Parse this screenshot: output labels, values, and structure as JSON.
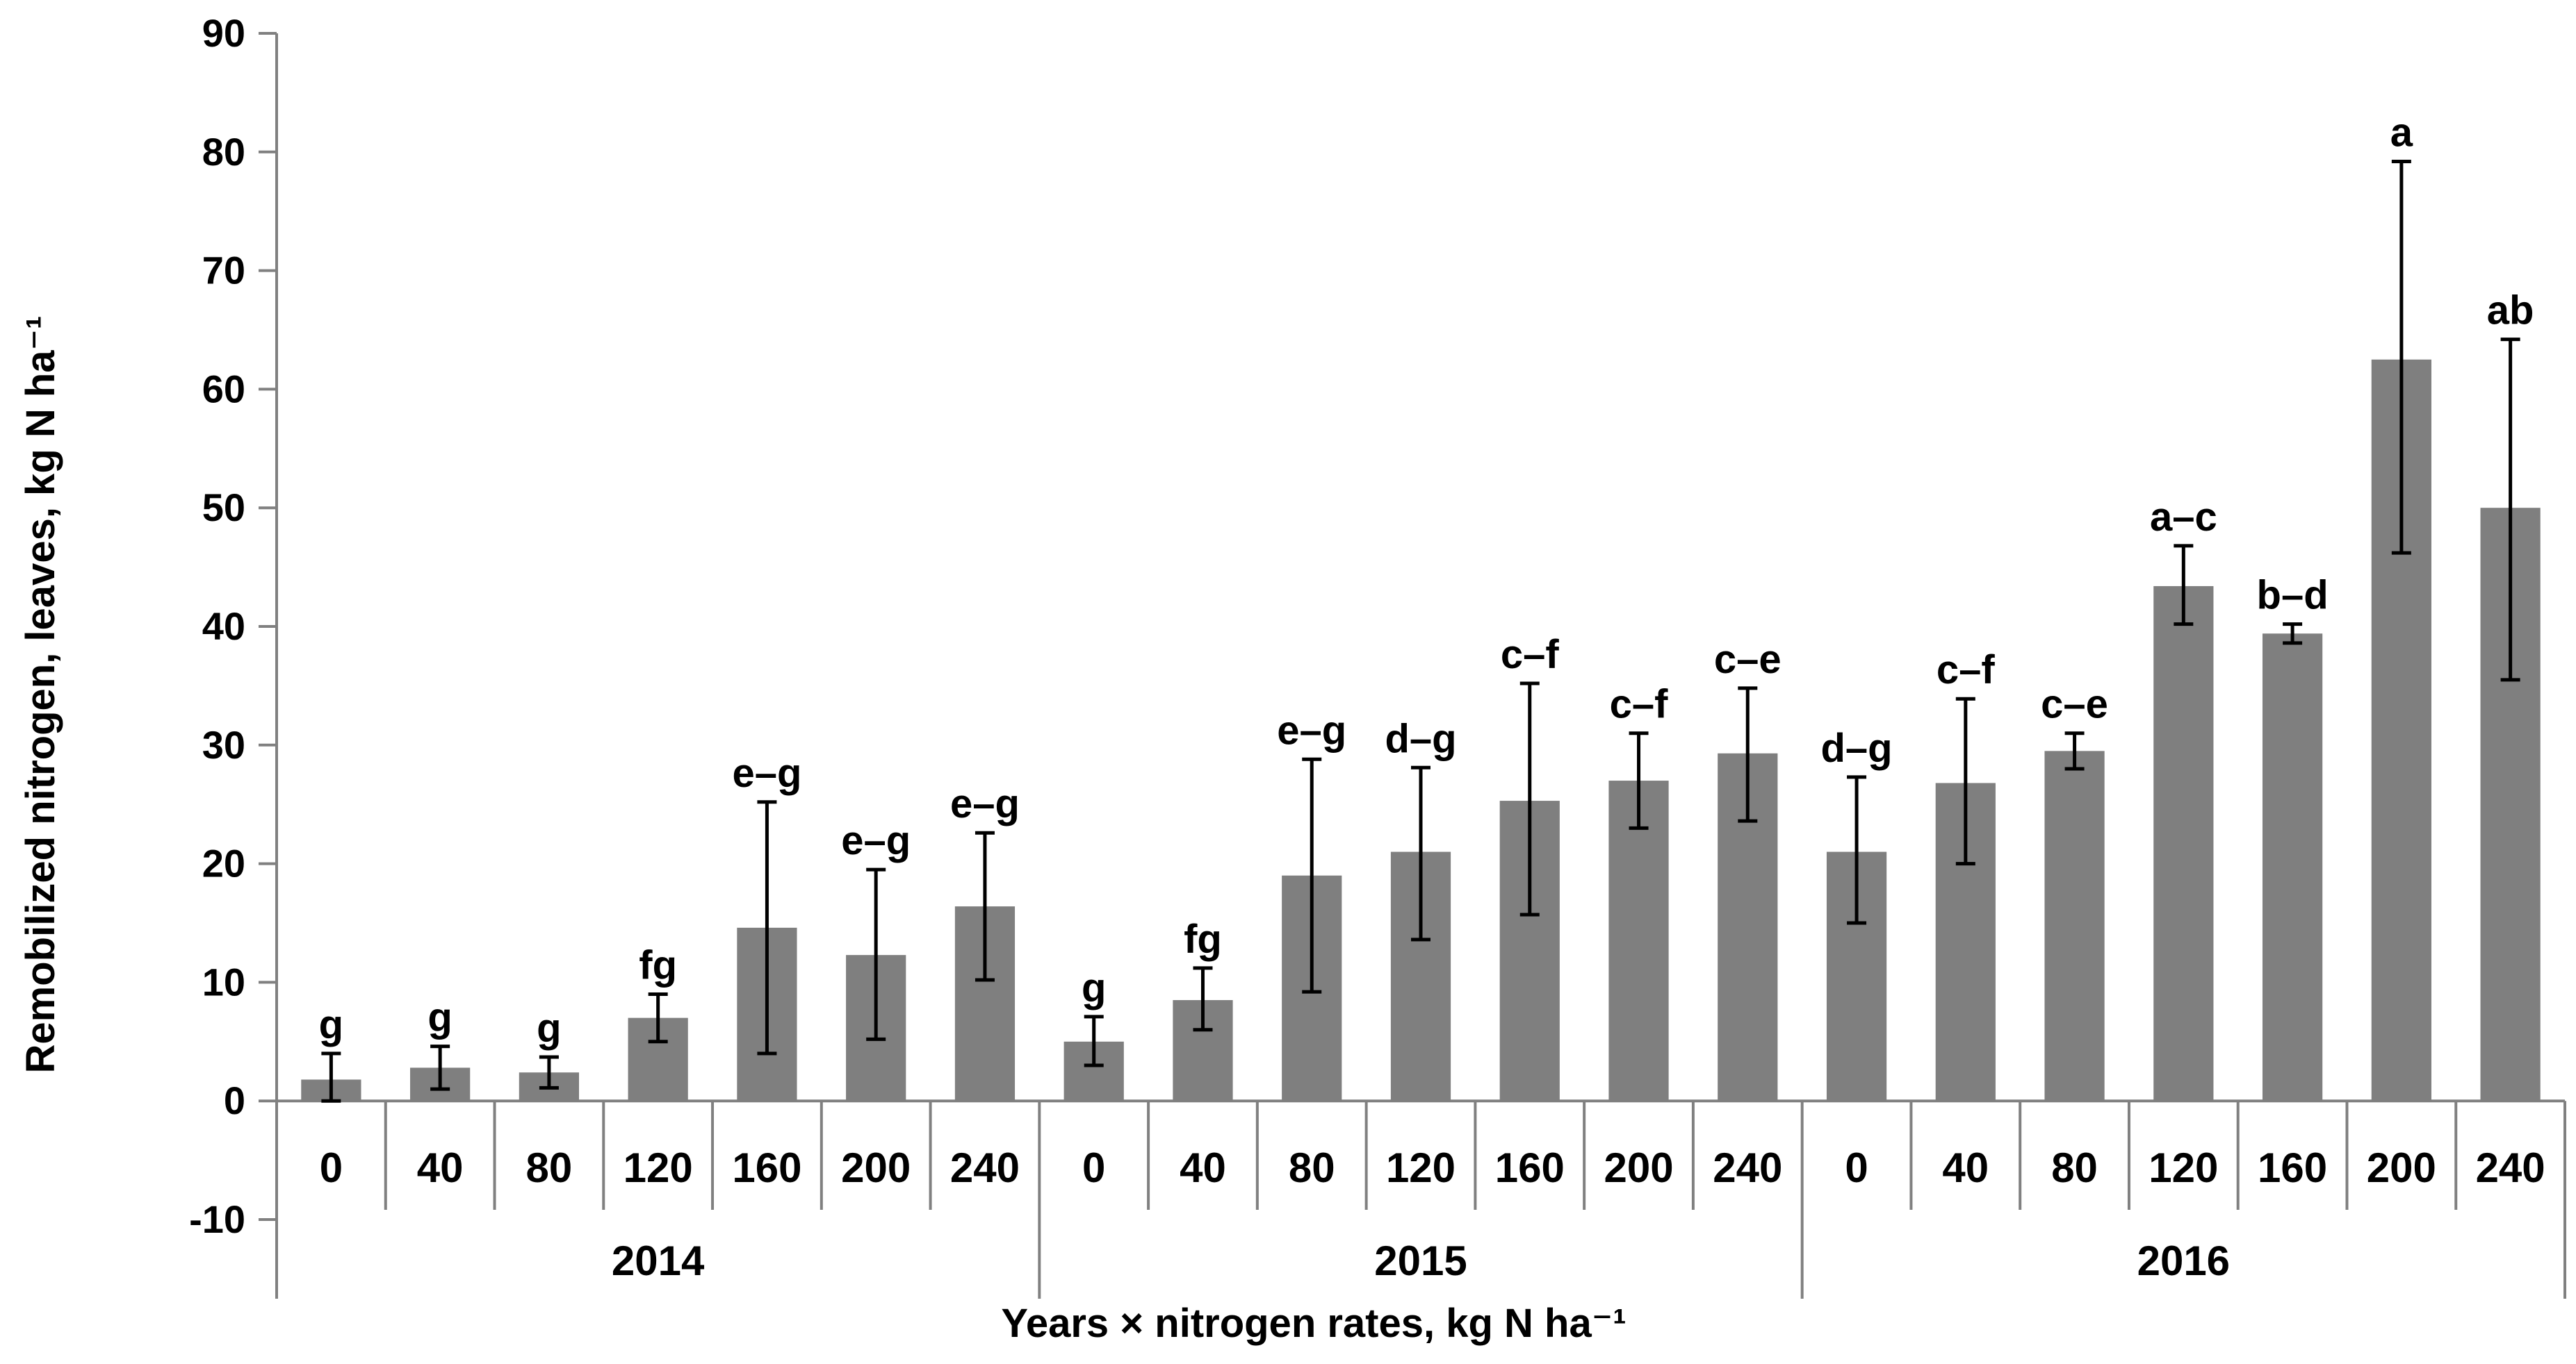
{
  "chart_data": {
    "type": "bar",
    "title": "",
    "xlabel": "Years × nitrogen rates, kg N ha⁻¹",
    "ylabel": "Remobilized nitrogen, leaves, kg N ha⁻¹",
    "ylim": [
      -10,
      90
    ],
    "yticks": [
      "-10",
      "0",
      "10",
      "20",
      "30",
      "40",
      "50",
      "60",
      "70",
      "80",
      "90"
    ],
    "grid": false,
    "groups": [
      {
        "year": "2014",
        "bars": [
          {
            "rate": "0",
            "value": 1.8,
            "err_low": 0.0,
            "err_high": 4.0,
            "sig": "g"
          },
          {
            "rate": "40",
            "value": 2.8,
            "err_low": 1.0,
            "err_high": 4.6,
            "sig": "g"
          },
          {
            "rate": "80",
            "value": 2.4,
            "err_low": 1.1,
            "err_high": 3.7,
            "sig": "g"
          },
          {
            "rate": "120",
            "value": 7.0,
            "err_low": 5.0,
            "err_high": 9.0,
            "sig": "fg"
          },
          {
            "rate": "160",
            "value": 14.6,
            "err_low": 4.0,
            "err_high": 25.2,
            "sig": "e–g"
          },
          {
            "rate": "200",
            "value": 12.3,
            "err_low": 5.2,
            "err_high": 19.5,
            "sig": "e–g"
          },
          {
            "rate": "240",
            "value": 16.4,
            "err_low": 10.2,
            "err_high": 22.6,
            "sig": "e–g"
          }
        ]
      },
      {
        "year": "2015",
        "bars": [
          {
            "rate": "0",
            "value": 5.0,
            "err_low": 3.0,
            "err_high": 7.1,
            "sig": "g"
          },
          {
            "rate": "40",
            "value": 8.5,
            "err_low": 6.0,
            "err_high": 11.2,
            "sig": "fg"
          },
          {
            "rate": "80",
            "value": 19.0,
            "err_low": 9.2,
            "err_high": 28.8,
            "sig": "e–g"
          },
          {
            "rate": "120",
            "value": 21.0,
            "err_low": 13.6,
            "err_high": 28.1,
            "sig": "d–g"
          },
          {
            "rate": "160",
            "value": 25.3,
            "err_low": 15.7,
            "err_high": 35.2,
            "sig": "c–f"
          },
          {
            "rate": "200",
            "value": 27.0,
            "err_low": 23.0,
            "err_high": 31.0,
            "sig": "c–f"
          },
          {
            "rate": "240",
            "value": 29.3,
            "err_low": 23.6,
            "err_high": 34.8,
            "sig": "c–e"
          }
        ]
      },
      {
        "year": "2016",
        "bars": [
          {
            "rate": "0",
            "value": 21.0,
            "err_low": 15.0,
            "err_high": 27.3,
            "sig": "d–g"
          },
          {
            "rate": "40",
            "value": 26.8,
            "err_low": 20.0,
            "err_high": 33.9,
            "sig": "c–f"
          },
          {
            "rate": "80",
            "value": 29.5,
            "err_low": 28.0,
            "err_high": 31.0,
            "sig": "c–e"
          },
          {
            "rate": "120",
            "value": 43.4,
            "err_low": 40.2,
            "err_high": 46.8,
            "sig": "a–c"
          },
          {
            "rate": "160",
            "value": 39.4,
            "err_low": 38.6,
            "err_high": 40.2,
            "sig": "b–d"
          },
          {
            "rate": "200",
            "value": 62.5,
            "err_low": 46.2,
            "err_high": 79.2,
            "sig": "a"
          },
          {
            "rate": "240",
            "value": 50.0,
            "err_low": 35.5,
            "err_high": 64.2,
            "sig": "ab"
          }
        ]
      }
    ],
    "colors": {
      "bar": "#7f7f7f",
      "axis": "#808080",
      "error": "#000000"
    }
  }
}
